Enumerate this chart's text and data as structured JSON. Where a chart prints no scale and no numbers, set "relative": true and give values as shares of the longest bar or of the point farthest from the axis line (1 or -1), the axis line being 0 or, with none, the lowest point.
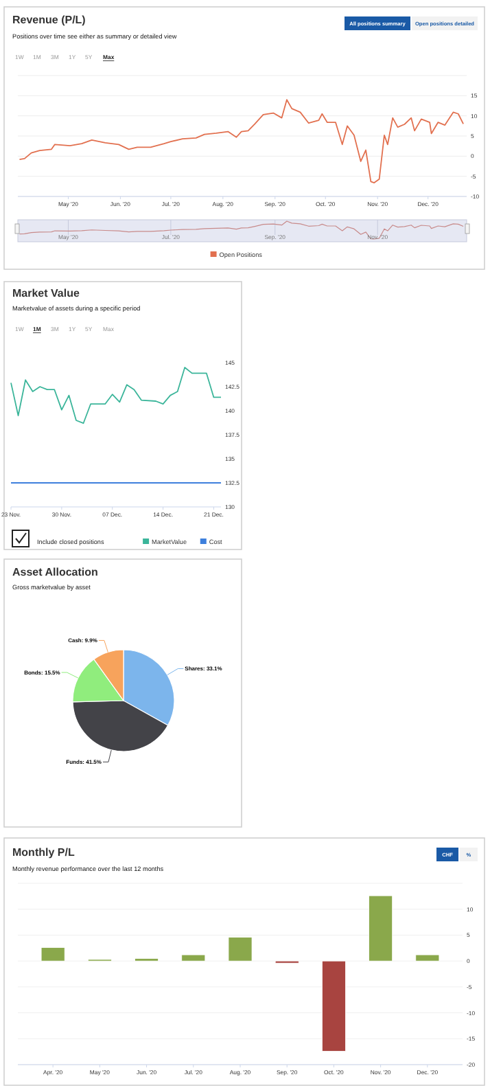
{
  "chart_data": [
    {
      "type": "line",
      "title": "Revenue (P/L)",
      "subtitle": "Positions over time see either as summary or detailed view",
      "annotations": [
        "1W",
        "1M",
        "3M",
        "1Y",
        "5Y",
        "Max",
        "All positions summary",
        "Open positions detailed"
      ],
      "x": [
        "2020-04-02",
        "2020-04-05",
        "2020-04-09",
        "2020-04-14",
        "2020-04-21",
        "2020-04-23",
        "2020-05-02",
        "2020-05-09",
        "2020-05-15",
        "2020-05-23",
        "2020-05-31",
        "2020-06-06",
        "2020-06-11",
        "2020-06-19",
        "2020-06-27",
        "2020-07-01",
        "2020-07-08",
        "2020-07-16",
        "2020-07-21",
        "2020-07-28",
        "2020-08-04",
        "2020-08-09",
        "2020-08-12",
        "2020-08-16",
        "2020-08-20",
        "2020-08-25",
        "2020-08-31",
        "2020-09-05",
        "2020-09-08",
        "2020-09-11",
        "2020-09-16",
        "2020-09-21",
        "2020-09-27",
        "2020-09-29",
        "2020-10-02",
        "2020-10-07",
        "2020-10-11",
        "2020-10-14",
        "2020-10-18",
        "2020-10-22",
        "2020-10-25",
        "2020-10-28",
        "2020-10-30",
        "2020-11-02",
        "2020-11-05",
        "2020-11-07",
        "2020-11-10",
        "2020-11-13",
        "2020-11-17",
        "2020-11-21",
        "2020-11-23",
        "2020-11-27",
        "2020-12-02",
        "2020-12-03",
        "2020-12-07",
        "2020-12-11",
        "2020-12-16",
        "2020-12-19",
        "2020-12-22"
      ],
      "series": [
        {
          "name": "Open Positions",
          "color": "#e2704f",
          "values": [
            -0.8,
            -0.6,
            0.8,
            1.4,
            1.7,
            2.9,
            2.6,
            3.1,
            4.0,
            3.3,
            2.9,
            1.7,
            2.2,
            2.2,
            3.1,
            3.6,
            4.3,
            4.5,
            5.4,
            5.7,
            6.1,
            4.7,
            6.1,
            6.3,
            8.0,
            10.3,
            10.7,
            9.5,
            14.0,
            11.8,
            10.9,
            8.2,
            8.9,
            10.5,
            8.4,
            8.4,
            2.9,
            7.5,
            5.2,
            -1.3,
            1.5,
            -6.3,
            -6.6,
            -5.7,
            5.2,
            2.9,
            9.5,
            7.2,
            7.9,
            9.5,
            6.3,
            9.2,
            8.4,
            5.6,
            8.4,
            7.7,
            10.9,
            10.5,
            8.0
          ]
        }
      ],
      "xlim": [
        "2020-04-01",
        "2020-12-24"
      ],
      "xticks": [
        {
          "value": "2020-05-01",
          "label": "May '20"
        },
        {
          "value": "2020-06-01",
          "label": "Jun. '20"
        },
        {
          "value": "2020-07-01",
          "label": "Jul. '20"
        },
        {
          "value": "2020-08-01",
          "label": "Aug. '20"
        },
        {
          "value": "2020-09-01",
          "label": "Sep. '20"
        },
        {
          "value": "2020-10-01",
          "label": "Oct. '20"
        },
        {
          "value": "2020-11-01",
          "label": "Nov. '20"
        },
        {
          "value": "2020-12-01",
          "label": "Dec. '20"
        }
      ],
      "ylim": [
        -10,
        20
      ],
      "yticks": [
        -10,
        -5,
        0,
        5,
        10,
        15,
        {
          "value": 20,
          "label": null
        }
      ],
      "grid": "y",
      "legend": "bottom"
    },
    {
      "type": "line",
      "x": [
        "2020-04-02",
        "2020-04-05",
        "2020-04-09",
        "2020-04-14",
        "2020-04-21",
        "2020-04-23",
        "2020-05-02",
        "2020-05-09",
        "2020-05-15",
        "2020-05-23",
        "2020-05-31",
        "2020-06-06",
        "2020-06-11",
        "2020-06-19",
        "2020-06-27",
        "2020-07-01",
        "2020-07-08",
        "2020-07-16",
        "2020-07-21",
        "2020-07-28",
        "2020-08-04",
        "2020-08-09",
        "2020-08-12",
        "2020-08-16",
        "2020-08-20",
        "2020-08-25",
        "2020-08-31",
        "2020-09-05",
        "2020-09-08",
        "2020-09-11",
        "2020-09-16",
        "2020-09-21",
        "2020-09-27",
        "2020-09-29",
        "2020-10-02",
        "2020-10-07",
        "2020-10-11",
        "2020-10-14",
        "2020-10-18",
        "2020-10-22",
        "2020-10-25",
        "2020-10-28",
        "2020-10-30",
        "2020-11-02",
        "2020-11-05",
        "2020-11-07",
        "2020-11-10",
        "2020-11-13",
        "2020-11-17",
        "2020-11-21",
        "2020-11-23",
        "2020-11-27",
        "2020-12-02",
        "2020-12-03",
        "2020-12-07",
        "2020-12-11",
        "2020-12-16",
        "2020-12-19",
        "2020-12-22"
      ],
      "series": [
        {
          "color": "#c88a8a",
          "values": [
            0.28,
            0.29,
            0.36,
            0.39,
            0.4,
            0.46,
            0.45,
            0.47,
            0.51,
            0.48,
            0.46,
            0.4,
            0.43,
            0.43,
            0.47,
            0.5,
            0.53,
            0.54,
            0.58,
            0.6,
            0.62,
            0.55,
            0.62,
            0.63,
            0.71,
            0.82,
            0.84,
            0.78,
            1,
            0.89,
            0.85,
            0.72,
            0.75,
            0.83,
            0.73,
            0.73,
            0.46,
            0.68,
            0.57,
            0.26,
            0.39,
            0.01,
            0,
            0.04,
            0.57,
            0.46,
            0.78,
            0.67,
            0.7,
            0.78,
            0.63,
            0.77,
            0.73,
            0.59,
            0.73,
            0.69,
            0.85,
            0.83,
            0.71
          ]
        }
      ],
      "relative": true,
      "xlim": [
        "2020-04-01",
        "2020-12-24"
      ],
      "xticks": [
        {
          "value": "2020-05-01",
          "label": "May '20"
        },
        {
          "value": "2020-07-01",
          "label": "Jul. '20"
        },
        {
          "value": "2020-09-01",
          "label": "Sep. '20"
        },
        {
          "value": "2020-11-01",
          "label": "Nov. '20"
        }
      ],
      "tick_labels": "x",
      "grid": "x"
    },
    {
      "type": "line",
      "title": "Market Value",
      "subtitle": "Marketvalue of assets during a specific period",
      "annotations": [
        "1W",
        "1M",
        "3M",
        "1Y",
        "5Y",
        "Max",
        "Include closed positions"
      ],
      "x": [
        "2020-11-23",
        "2020-11-24",
        "2020-11-25",
        "2020-11-26",
        "2020-11-27",
        "2020-11-28",
        "2020-11-29",
        "2020-11-30",
        "2020-12-01",
        "2020-12-02",
        "2020-12-03",
        "2020-12-04",
        "2020-12-06",
        "2020-12-07",
        "2020-12-08",
        "2020-12-09",
        "2020-12-10",
        "2020-12-11",
        "2020-12-13",
        "2020-12-14",
        "2020-12-15",
        "2020-12-16",
        "2020-12-17",
        "2020-12-18",
        "2020-12-20",
        "2020-12-21",
        "2020-12-22"
      ],
      "series": [
        {
          "name": "MarketValue",
          "color": "#3bb59a",
          "values": [
            142.9,
            139.5,
            143.2,
            142.0,
            142.5,
            142.2,
            142.2,
            140.1,
            141.6,
            139.0,
            138.7,
            140.7,
            140.7,
            141.7,
            140.9,
            142.7,
            142.2,
            141.1,
            141.0,
            140.7,
            141.6,
            142.0,
            144.5,
            143.9,
            143.9,
            141.4,
            141.4
          ]
        },
        {
          "name": "Cost",
          "color": "#3d7fdc",
          "values": [
            132.5,
            132.5,
            132.5,
            132.5,
            132.5,
            132.5,
            132.5,
            132.5,
            132.5,
            132.5,
            132.5,
            132.5,
            132.5,
            132.5,
            132.5,
            132.5,
            132.5,
            132.5,
            132.5,
            132.5,
            132.5,
            132.5,
            132.5,
            132.5,
            132.5,
            132.5,
            132.5
          ]
        }
      ],
      "xlim": [
        "2020-11-23",
        "2020-12-22"
      ],
      "xticks": [
        {
          "value": "2020-11-23",
          "label": "23 Nov."
        },
        {
          "value": "2020-11-30",
          "label": "30 Nov."
        },
        {
          "value": "2020-12-07",
          "label": "07 Dec."
        },
        {
          "value": "2020-12-14",
          "label": "14 Dec."
        },
        {
          "value": "2020-12-21",
          "label": "21 Dec."
        }
      ],
      "ylim": [
        130,
        145
      ],
      "yticks": [
        130,
        132.5,
        135,
        137.5,
        140,
        142.5,
        145
      ],
      "legend": "bottom right"
    },
    {
      "type": "pie",
      "title": "Asset Allocation",
      "subtitle": "Gross marketvalue by asset",
      "categories": [
        "Shares",
        "Funds",
        "Bonds",
        "Cash"
      ],
      "values": [
        33.1,
        41.5,
        15.5,
        9.9
      ],
      "colors": [
        "#7cb5ec",
        "#434348",
        "#90ed7d",
        "#f7a35c"
      ],
      "value_labels": [
        "33.1%",
        "41.5%",
        "15.5%",
        "9.9%"
      ]
    },
    {
      "type": "bar",
      "title": "Monthly P/L",
      "subtitle": "Monthly revenue performance over the last 12 months",
      "annotations": [
        "CHF",
        "%"
      ],
      "categories": [
        "Apr. '20",
        "May '20",
        "Jun. '20",
        "Jul. '20",
        "Aug. '20",
        "Sep. '20",
        "Oct. '20",
        "Nov. '20",
        "Dec. '20"
      ],
      "values": [
        2.6,
        0.3,
        0.5,
        1.2,
        4.6,
        -0.4,
        -17.4,
        12.6,
        1.2
      ],
      "colors": [
        "#8aa84b",
        "#8aa84b",
        "#8aa84b",
        "#8aa84b",
        "#8aa84b",
        "#a84440",
        "#a84440",
        "#8aa84b",
        "#8aa84b"
      ],
      "ylim": [
        -20,
        15
      ],
      "yticks": [
        -20,
        -15,
        -10,
        -5,
        0,
        5,
        10,
        {
          "value": 15,
          "label": null
        }
      ],
      "grid": "y"
    }
  ]
}
